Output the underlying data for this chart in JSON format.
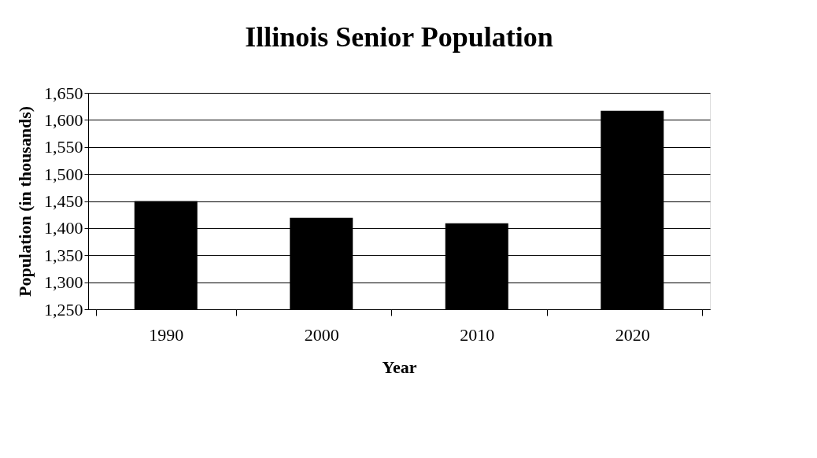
{
  "chart_data": {
    "type": "bar",
    "title": "Illinois Senior Population",
    "xlabel": "Year",
    "ylabel": "Population (in thousands)",
    "categories": [
      "1990",
      "2000",
      "2010",
      "2020"
    ],
    "values": [
      1450,
      1419,
      1409,
      1617
    ],
    "color": "#000000",
    "ylim": [
      1250,
      1650
    ],
    "yticks": [
      {
        "value": 1250,
        "label": "1,250"
      },
      {
        "value": 1300,
        "label": "1,300"
      },
      {
        "value": 1350,
        "label": "1,350"
      },
      {
        "value": 1400,
        "label": "1,400"
      },
      {
        "value": 1450,
        "label": "1,450"
      },
      {
        "value": 1500,
        "label": "1,500"
      },
      {
        "value": 1550,
        "label": "1,550"
      },
      {
        "value": 1600,
        "label": "1,600"
      },
      {
        "value": 1650,
        "label": "1,650"
      }
    ],
    "grid": "y"
  }
}
